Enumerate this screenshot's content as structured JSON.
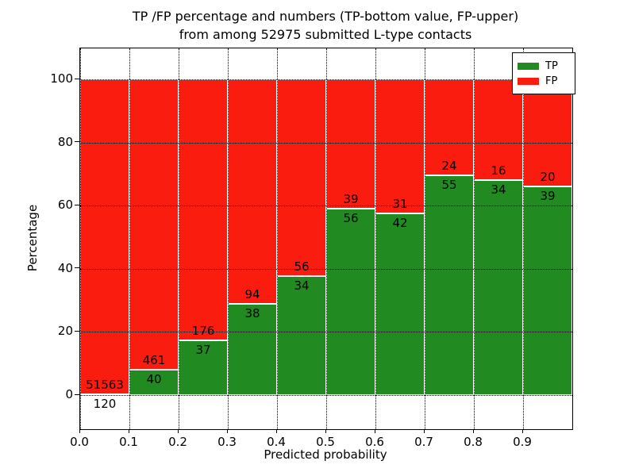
{
  "chart_data": {
    "type": "bar",
    "stacked": true,
    "title_line1": "TP /FP percentage and numbers (TP-bottom value, FP-upper)",
    "title_line2": "from among 52975 submitted L-type contacts",
    "xlabel": "Predicted probability",
    "ylabel": "Percentage",
    "total_contacts": 52975,
    "xlim": [
      0.0,
      1.0
    ],
    "ylim": [
      -10.8,
      109.8
    ],
    "grid": "dotted black, on both axes, drawn above bars",
    "bar_edge_color": "#ffffff",
    "x_tick_values": [
      0.0,
      0.1,
      0.2,
      0.3,
      0.4,
      0.5,
      0.6,
      0.7,
      0.8,
      0.9
    ],
    "x_tick_labels": [
      "0.0",
      "0.1",
      "0.2",
      "0.3",
      "0.4",
      "0.5",
      "0.6",
      "0.7",
      "0.8",
      "0.9"
    ],
    "y_tick_values": [
      0,
      20,
      40,
      60,
      80,
      100
    ],
    "y_tick_labels": [
      "0",
      "20",
      "40",
      "60",
      "80",
      "100"
    ],
    "series": [
      {
        "name": "TP",
        "color": "#218a21",
        "position": "bottom"
      },
      {
        "name": "FP",
        "color": "#fb1c10",
        "position": "top"
      }
    ],
    "bins": [
      {
        "x_start": 0.0,
        "x_end": 0.1,
        "tp_count": 120,
        "fp_count": 51563,
        "tp_pct": 0.23,
        "fp_pct": 99.77
      },
      {
        "x_start": 0.1,
        "x_end": 0.2,
        "tp_count": 40,
        "fp_count": 461,
        "tp_pct": 7.98,
        "fp_pct": 92.02
      },
      {
        "x_start": 0.2,
        "x_end": 0.3,
        "tp_count": 37,
        "fp_count": 176,
        "tp_pct": 17.37,
        "fp_pct": 82.63
      },
      {
        "x_start": 0.3,
        "x_end": 0.4,
        "tp_count": 38,
        "fp_count": 94,
        "tp_pct": 28.79,
        "fp_pct": 71.21
      },
      {
        "x_start": 0.4,
        "x_end": 0.5,
        "tp_count": 34,
        "fp_count": 56,
        "tp_pct": 37.78,
        "fp_pct": 62.22
      },
      {
        "x_start": 0.5,
        "x_end": 0.6,
        "tp_count": 56,
        "fp_count": 39,
        "tp_pct": 58.95,
        "fp_pct": 41.05
      },
      {
        "x_start": 0.6,
        "x_end": 0.7,
        "tp_count": 42,
        "fp_count": 31,
        "tp_pct": 57.53,
        "fp_pct": 42.47
      },
      {
        "x_start": 0.7,
        "x_end": 0.8,
        "tp_count": 55,
        "fp_count": 24,
        "tp_pct": 69.62,
        "fp_pct": 30.38
      },
      {
        "x_start": 0.8,
        "x_end": 0.9,
        "tp_count": 34,
        "fp_count": 16,
        "tp_pct": 68.0,
        "fp_pct": 32.0
      },
      {
        "x_start": 0.9,
        "x_end": 1.0,
        "tp_count": 39,
        "fp_count": 20,
        "tp_pct": 66.1,
        "fp_pct": 33.9
      }
    ],
    "legend": {
      "position": "upper right",
      "entries": [
        {
          "label": "TP",
          "color": "#218a21"
        },
        {
          "label": "FP",
          "color": "#fb1c10"
        }
      ]
    }
  }
}
